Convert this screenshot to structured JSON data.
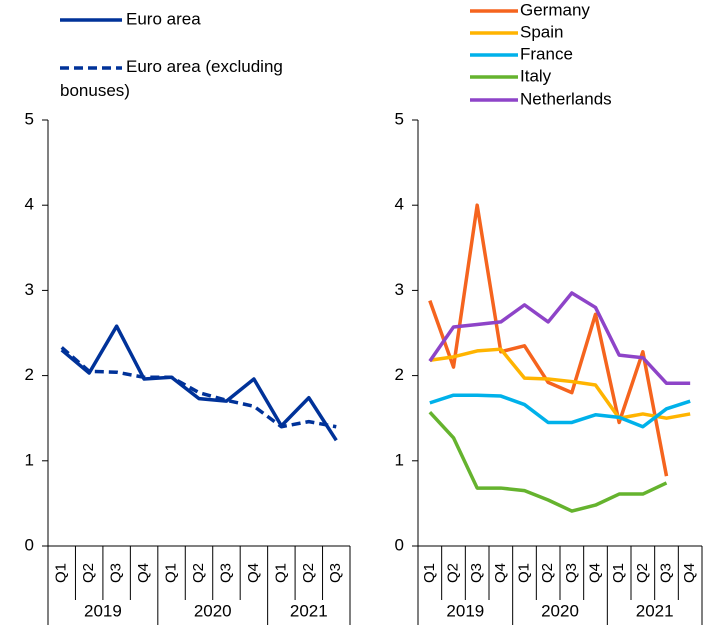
{
  "chart_data": [
    {
      "type": "line",
      "categories": [
        "Q1",
        "Q2",
        "Q3",
        "Q4",
        "Q1",
        "Q2",
        "Q3",
        "Q4",
        "Q1",
        "Q2",
        "Q3"
      ],
      "years": [
        "2019",
        "2020",
        "2021"
      ],
      "ylim": [
        0,
        5
      ],
      "yticks": [
        0,
        1,
        2,
        3,
        4,
        5
      ],
      "series": [
        {
          "name": "Euro area",
          "color": "#003299",
          "dash": false,
          "values": [
            2.3,
            2.03,
            2.58,
            1.96,
            1.98,
            1.73,
            1.7,
            1.96,
            1.41,
            1.74,
            1.24
          ]
        },
        {
          "name": "Euro area (excluding bonuses)",
          "color": "#003299",
          "dash": true,
          "values": [
            2.33,
            2.05,
            2.04,
            1.98,
            1.98,
            1.8,
            1.71,
            1.64,
            1.4,
            1.46,
            1.4
          ]
        }
      ]
    },
    {
      "type": "line",
      "categories": [
        "Q1",
        "Q2",
        "Q3",
        "Q4",
        "Q1",
        "Q2",
        "Q3",
        "Q4",
        "Q1",
        "Q2",
        "Q3",
        "Q4"
      ],
      "years": [
        "2019",
        "2020",
        "2021"
      ],
      "ylim": [
        0,
        5
      ],
      "yticks": [
        0,
        1,
        2,
        3,
        4,
        5
      ],
      "series": [
        {
          "name": "Germany",
          "color": "#f5641e",
          "dash": false,
          "values": [
            2.88,
            2.1,
            4.0,
            2.28,
            2.35,
            1.92,
            1.8,
            2.72,
            1.45,
            2.28,
            0.82,
            null
          ]
        },
        {
          "name": "Spain",
          "color": "#ffb400",
          "dash": false,
          "values": [
            2.18,
            2.22,
            2.29,
            2.31,
            1.97,
            1.96,
            1.93,
            1.89,
            1.5,
            1.55,
            1.5,
            1.55
          ]
        },
        {
          "name": "France",
          "color": "#00b1ea",
          "dash": false,
          "values": [
            1.68,
            1.77,
            1.77,
            1.76,
            1.66,
            1.45,
            1.45,
            1.54,
            1.51,
            1.4,
            1.61,
            1.7
          ]
        },
        {
          "name": "Italy",
          "color": "#65b32e",
          "dash": false,
          "values": [
            1.57,
            1.27,
            0.68,
            0.68,
            0.65,
            0.54,
            0.41,
            0.48,
            0.61,
            0.61,
            0.74,
            null
          ]
        },
        {
          "name": "Netherlands",
          "color": "#8e44c8",
          "dash": false,
          "values": [
            2.17,
            2.57,
            2.6,
            2.63,
            2.83,
            2.63,
            2.97,
            2.8,
            2.24,
            2.21,
            1.91,
            1.91
          ]
        }
      ]
    }
  ]
}
